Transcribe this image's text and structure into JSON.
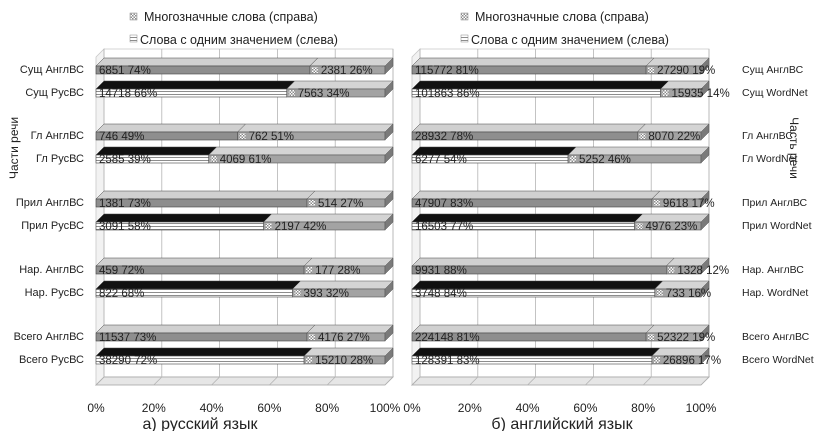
{
  "chart_data": [
    {
      "type": "bar",
      "stacked": "percent",
      "caption": "а) русский язык",
      "ylabel": "Части речи",
      "ylabel_side": "left",
      "legend": {
        "items": [
          "Многозначные слова (справа)",
          "Слова с одним значением (слева)"
        ],
        "position": "top"
      },
      "xlim": [
        0,
        100
      ],
      "x_ticks": [
        "0%",
        "20%",
        "40%",
        "60%",
        "80%",
        "100%"
      ],
      "grid": true,
      "categories": [
        "Сущ АнглВС",
        "Сущ РусВС",
        "Гл АнглВС",
        "Гл РусВС",
        "Прил АнглВС",
        "Прил РусВС",
        "Нар. АнглВС",
        "Нар. РусВС",
        "Всего АнглВС",
        "Всего РусВС"
      ],
      "series": [
        {
          "name": "Слова с одним значением (слева)",
          "values": [
            74,
            66,
            49,
            39,
            73,
            58,
            72,
            68,
            73,
            72
          ],
          "labels": [
            "6851 74%",
            "14718 66%",
            "746 49%",
            "2585 39%",
            "1381 73%",
            "3091 58%",
            "459 72%",
            "822 68%",
            "11537 73%",
            "38290 72%"
          ]
        },
        {
          "name": "Многозначные слова (справа)",
          "values": [
            26,
            34,
            51,
            61,
            27,
            42,
            28,
            32,
            27,
            28
          ],
          "labels": [
            "2381 26%",
            "7563 34%",
            "762 51%",
            "4069 61%",
            "514 27%",
            "2197 42%",
            "177 28%",
            "393 32%",
            "4176 27%",
            "15210 28%"
          ]
        }
      ]
    },
    {
      "type": "bar",
      "stacked": "percent",
      "caption": "б) английский язык",
      "ylabel": "Часть речи",
      "ylabel_side": "right",
      "legend": {
        "items": [
          "Многозначные слова (справа)",
          "Слова с одним значением (слева)"
        ],
        "position": "top"
      },
      "xlim": [
        0,
        100
      ],
      "x_ticks": [
        "0%",
        "20%",
        "40%",
        "60%",
        "80%",
        "100%"
      ],
      "grid": true,
      "categories": [
        "Сущ АнглВС",
        "Сущ WordNet",
        "Гл АнглВС",
        "Гл WordNet",
        "Прил АнглВС",
        "Прил WordNet",
        "Нар. АнглВС",
        "Нар. WordNet",
        "Всего АнглВС",
        "Всего WordNet"
      ],
      "series": [
        {
          "name": "Слова с одним значением (слева)",
          "values": [
            81,
            86,
            78,
            54,
            83,
            77,
            88,
            84,
            81,
            83
          ],
          "labels": [
            "115772 81%",
            "101863 86%",
            "28932 78%",
            "6277 54%",
            "47907 83%",
            "16503 77%",
            "9931 88%",
            "3748 84%",
            "224148 81%",
            "128391 83%"
          ]
        },
        {
          "name": "Многозначные слова (справа)",
          "values": [
            19,
            14,
            22,
            46,
            17,
            23,
            12,
            16,
            19,
            17
          ],
          "labels": [
            "27290 19%",
            "15935 14%",
            "8070 22%",
            "5252 46%",
            "9618 17%",
            "4976 23%",
            "1328 12%",
            "733 16%",
            "52322 19%",
            "26896 17%"
          ]
        }
      ]
    }
  ]
}
